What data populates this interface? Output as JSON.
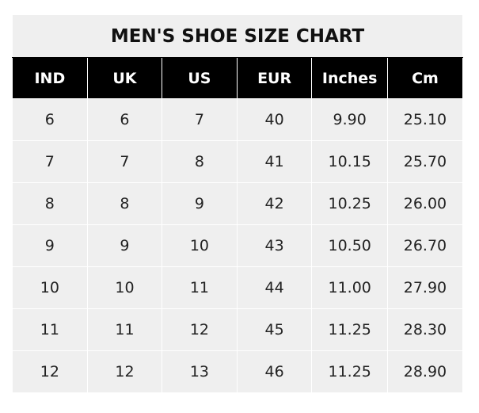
{
  "title": "MEN'S SHOE SIZE CHART",
  "headers": [
    "IND",
    "UK",
    "US",
    "EUR",
    "Inches",
    "Cm"
  ],
  "rows": [
    [
      "6",
      "6",
      "7",
      "40",
      "9.90",
      "25.10"
    ],
    [
      "7",
      "7",
      "8",
      "41",
      "10.15",
      "25.70"
    ],
    [
      "8",
      "8",
      "9",
      "42",
      "10.25",
      "26.00"
    ],
    [
      "9",
      "9",
      "10",
      "43",
      "10.50",
      "26.70"
    ],
    [
      "10",
      "10",
      "11",
      "44",
      "11.00",
      "27.90"
    ],
    [
      "11",
      "11",
      "12",
      "45",
      "11.25",
      "28.30"
    ],
    [
      "12",
      "12",
      "13",
      "46",
      "11.25",
      "28.90"
    ]
  ],
  "colors": {
    "header_bg": "#000000",
    "header_text": "#ffffff",
    "cell_bg": "#efefef"
  }
}
